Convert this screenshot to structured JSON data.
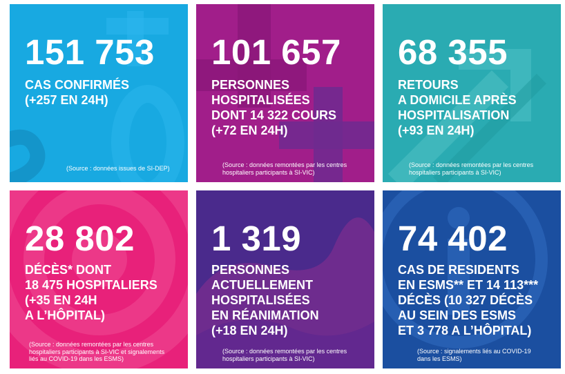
{
  "tiles": [
    {
      "number": "151 753",
      "description": "CAS CONFIRMÉS\n(+257 EN 24H)",
      "source": "(Source : données issues de SI-DEP)",
      "color": "#18a9e1"
    },
    {
      "number": "101 657",
      "description": "PERSONNES\nHOSPITALISÉES\nDONT 14 322 COURS\n(+72 EN 24H)",
      "source": "(Source : données remontées par les centres\nhospitaliers participants à SI-VIC)",
      "color": "#a11e8a"
    },
    {
      "number": "68 355",
      "description": "RETOURS\nA DOMICILE APRÈS\nHOSPITALISATION\n(+93 EN 24H)",
      "source": "(Source : données remontées par les centres\nhospitaliers participants à SI-VIC)",
      "color": "#2aabb2"
    },
    {
      "number": "28 802",
      "description": "DÉCÈS* DONT\n18 475 HOSPITALIERS\n(+35 EN 24H\nA L’HÔPITAL)",
      "source": "(Source : données remontées par les centres\nhospitaliers participants à SI-VIC et signalements\nliés au COVID-19 dans les ESMS)",
      "color": "#e8217a"
    },
    {
      "number": "1 319",
      "description": "PERSONNES\nACTUELLEMENT\nHOSPITALISÉES\nEN RÉANIMATION\n(+18 EN 24H)",
      "source": "(Source : données remontées par les centres\nhospitaliers participants à SI-VIC)",
      "color": "#4a2a8c"
    },
    {
      "number": "74 402",
      "description": "CAS DE RESIDENTS\nEN ESMS** ET 14 113***\nDÉCÈS (10 327 DÉCÈS\nAU SEIN DES ESMS\nET 3 778 A L’HÔPITAL)",
      "source": "(Source : signalements liés au COVID-19\ndans les ESMS)",
      "color": "#1b4fa0"
    }
  ]
}
